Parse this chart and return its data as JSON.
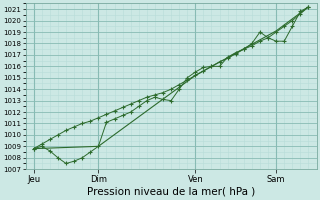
{
  "xlabel": "Pression niveau de la mer( hPa )",
  "bg_color": "#cce8e4",
  "grid_color_minor": "#b8ddd8",
  "grid_color_major": "#88bbb4",
  "line_color": "#2d6b2d",
  "ylim": [
    1007,
    1021.5
  ],
  "yticks": [
    1007,
    1008,
    1009,
    1010,
    1011,
    1012,
    1013,
    1014,
    1015,
    1016,
    1017,
    1018,
    1019,
    1020,
    1021
  ],
  "xlim": [
    0,
    36
  ],
  "day_positions": [
    1,
    9,
    21,
    31
  ],
  "day_labels": [
    "Jeu",
    "Dim",
    "Ven",
    "Sam"
  ],
  "vline_positions": [
    1,
    9,
    21,
    31
  ],
  "line1_x": [
    1,
    2,
    3,
    4,
    5,
    6,
    7,
    8,
    9,
    10,
    11,
    12,
    13,
    14,
    15,
    16,
    17,
    18,
    19,
    20,
    21,
    22,
    23,
    24,
    25,
    26,
    27,
    28,
    29,
    30,
    31,
    32,
    33,
    34,
    35
  ],
  "line1_y": [
    1008.8,
    1009.0,
    1008.6,
    1008.0,
    1007.5,
    1007.7,
    1008.0,
    1008.5,
    1009.0,
    1011.1,
    1011.4,
    1011.7,
    1012.0,
    1012.5,
    1013.0,
    1013.3,
    1013.1,
    1013.0,
    1014.0,
    1015.0,
    1015.5,
    1015.9,
    1016.0,
    1016.0,
    1016.8,
    1017.2,
    1017.5,
    1018.0,
    1019.0,
    1018.5,
    1018.2,
    1018.2,
    1019.5,
    1020.8,
    1021.2
  ],
  "line2_x": [
    1,
    2,
    3,
    4,
    5,
    6,
    7,
    8,
    9,
    10,
    11,
    12,
    13,
    14,
    15,
    16,
    17,
    18,
    19,
    20,
    21,
    22,
    23,
    24,
    25,
    26,
    27,
    28,
    29,
    30,
    31,
    32,
    33,
    34,
    35
  ],
  "line2_y": [
    1008.8,
    1009.2,
    1009.6,
    1010.0,
    1010.4,
    1010.7,
    1011.0,
    1011.2,
    1011.5,
    1011.8,
    1012.1,
    1012.4,
    1012.7,
    1013.0,
    1013.3,
    1013.5,
    1013.7,
    1014.0,
    1014.4,
    1014.8,
    1015.2,
    1015.6,
    1016.0,
    1016.4,
    1016.7,
    1017.1,
    1017.5,
    1017.8,
    1018.2,
    1018.5,
    1019.0,
    1019.5,
    1020.0,
    1020.6,
    1021.2
  ],
  "line3_x": [
    1,
    9,
    21,
    31,
    35
  ],
  "line3_y": [
    1008.8,
    1009.0,
    1015.2,
    1019.1,
    1021.2
  ]
}
